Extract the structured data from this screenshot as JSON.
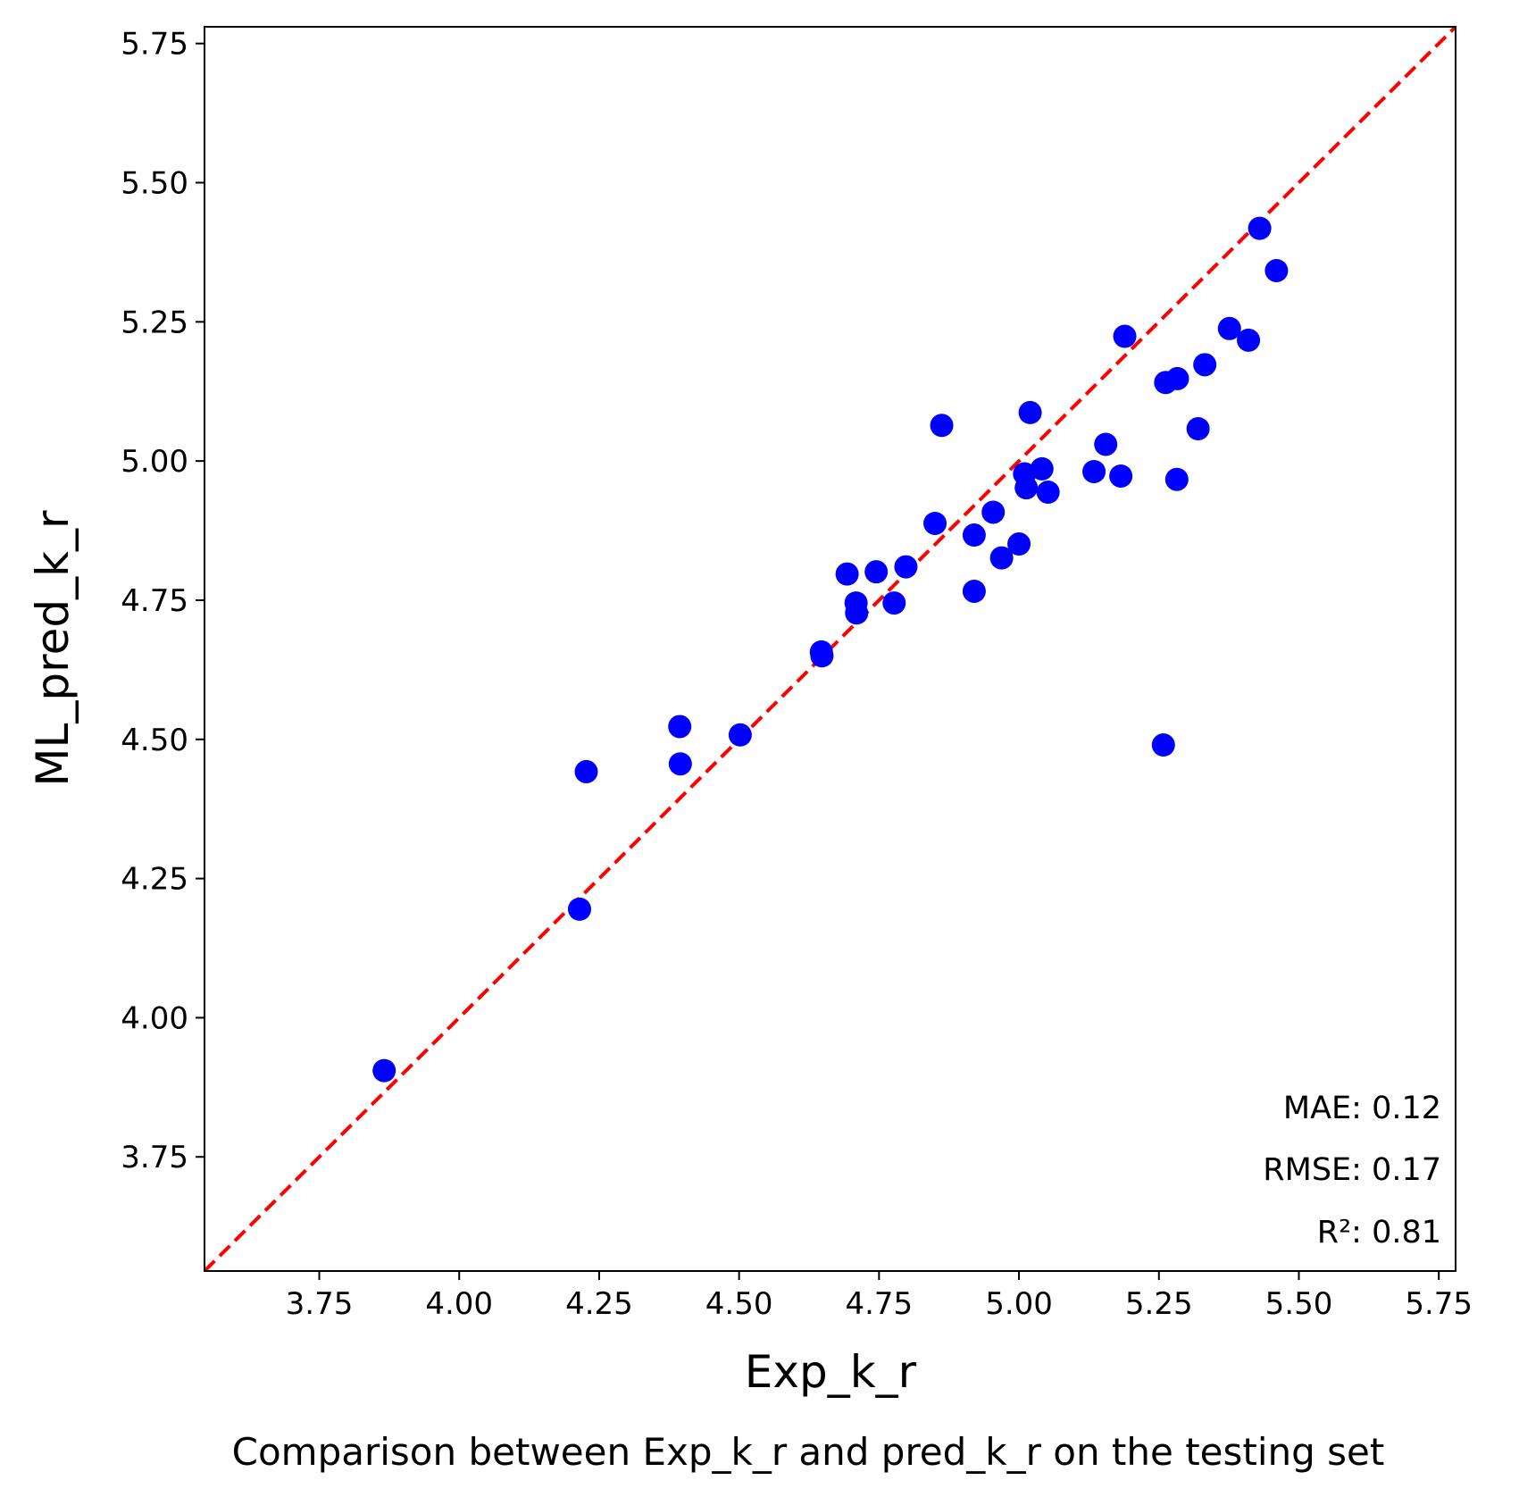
{
  "chart_data": {
    "type": "scatter",
    "xlabel": "Exp_k_r",
    "ylabel": "ML_pred_k_r",
    "caption": "Comparison between Exp_k_r and pred_k_r on the testing set",
    "xlim": [
      3.545,
      5.78
    ],
    "ylim": [
      3.545,
      5.78
    ],
    "xticks": [
      "3.75",
      "4.00",
      "4.25",
      "4.50",
      "4.75",
      "5.00",
      "5.25",
      "5.50",
      "5.75"
    ],
    "yticks": [
      "3.75",
      "4.00",
      "4.25",
      "4.50",
      "4.75",
      "5.00",
      "5.25",
      "5.50",
      "5.75"
    ],
    "tick_values": [
      3.75,
      4.0,
      4.25,
      4.5,
      4.75,
      5.0,
      5.25,
      5.5,
      5.75
    ],
    "point_color": "#0000ff",
    "reference_line": {
      "style": "dashed",
      "color": "#ff0000",
      "from": [
        3.545,
        3.545
      ],
      "to": [
        5.78,
        5.78
      ]
    },
    "metrics": {
      "mae": "MAE: 0.12",
      "rmse": "RMSE: 0.17",
      "r2": "R²: 0.81"
    },
    "points": [
      {
        "x": 3.866,
        "y": 3.905
      },
      {
        "x": 4.215,
        "y": 4.195
      },
      {
        "x": 4.227,
        "y": 4.442
      },
      {
        "x": 4.394,
        "y": 4.523
      },
      {
        "x": 4.395,
        "y": 4.456
      },
      {
        "x": 4.502,
        "y": 4.508
      },
      {
        "x": 4.647,
        "y": 4.657
      },
      {
        "x": 4.648,
        "y": 4.65
      },
      {
        "x": 4.693,
        "y": 4.797
      },
      {
        "x": 4.709,
        "y": 4.745
      },
      {
        "x": 4.71,
        "y": 4.727
      },
      {
        "x": 4.745,
        "y": 4.801
      },
      {
        "x": 4.777,
        "y": 4.745
      },
      {
        "x": 4.798,
        "y": 4.81
      },
      {
        "x": 4.85,
        "y": 4.888
      },
      {
        "x": 4.862,
        "y": 5.064
      },
      {
        "x": 4.92,
        "y": 4.867
      },
      {
        "x": 4.92,
        "y": 4.766
      },
      {
        "x": 4.954,
        "y": 4.908
      },
      {
        "x": 4.969,
        "y": 4.826
      },
      {
        "x": 5.0,
        "y": 4.851
      },
      {
        "x": 5.01,
        "y": 4.977
      },
      {
        "x": 5.013,
        "y": 4.952
      },
      {
        "x": 5.02,
        "y": 5.087
      },
      {
        "x": 5.041,
        "y": 4.986
      },
      {
        "x": 5.052,
        "y": 4.944
      },
      {
        "x": 5.134,
        "y": 4.981
      },
      {
        "x": 5.155,
        "y": 5.03
      },
      {
        "x": 5.182,
        "y": 4.973
      },
      {
        "x": 5.189,
        "y": 5.224
      },
      {
        "x": 5.258,
        "y": 4.49
      },
      {
        "x": 5.262,
        "y": 5.141
      },
      {
        "x": 5.283,
        "y": 5.148
      },
      {
        "x": 5.282,
        "y": 4.967
      },
      {
        "x": 5.32,
        "y": 5.058
      },
      {
        "x": 5.332,
        "y": 5.173
      },
      {
        "x": 5.376,
        "y": 5.238
      },
      {
        "x": 5.41,
        "y": 5.217
      },
      {
        "x": 5.43,
        "y": 5.418
      },
      {
        "x": 5.46,
        "y": 5.342
      }
    ]
  }
}
